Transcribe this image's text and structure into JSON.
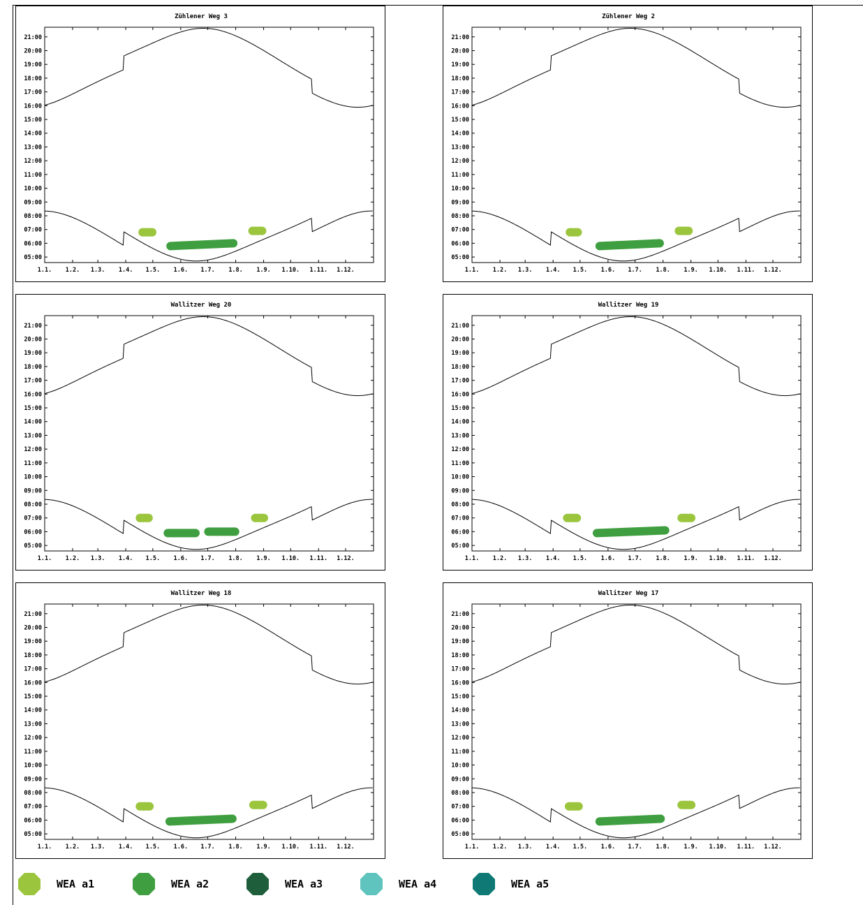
{
  "chart_data": [
    {
      "type": "scatter",
      "title": "Zühlener Weg 3",
      "x_tick_labels": [
        "1.1.",
        "1.2.",
        "1.3.",
        "1.4.",
        "1.5.",
        "1.6.",
        "1.7.",
        "1.8.",
        "1.9.",
        "1.10.",
        "1.11.",
        "1.12."
      ],
      "y_tick_labels": [
        "05:00",
        "06:00",
        "07:00",
        "08:00",
        "09:00",
        "10:00",
        "11:00",
        "12:00",
        "13:00",
        "14:00",
        "15:00",
        "16:00",
        "17:00",
        "18:00",
        "19:00",
        "20:00",
        "21:00"
      ],
      "xlim": [
        0,
        365
      ],
      "ylim": [
        4.6,
        21.7
      ],
      "blobs": [
        {
          "series": "WEA a1",
          "x_start": 104,
          "x_end": 124,
          "y_start": 6.8,
          "y_end": 6.8
        },
        {
          "series": "WEA a2",
          "x_start": 135,
          "x_end": 214,
          "y_start": 5.8,
          "y_end": 6.0
        },
        {
          "series": "WEA a1",
          "x_start": 226,
          "x_end": 246,
          "y_start": 6.9,
          "y_end": 6.9
        }
      ]
    },
    {
      "type": "scatter",
      "title": "Zühlener Weg 2",
      "x_tick_labels": [
        "1.1.",
        "1.2.",
        "1.3.",
        "1.4.",
        "1.5.",
        "1.6.",
        "1.7.",
        "1.8.",
        "1.9.",
        "1.10.",
        "1.11.",
        "1.12."
      ],
      "y_tick_labels": [
        "05:00",
        "06:00",
        "07:00",
        "08:00",
        "09:00",
        "10:00",
        "11:00",
        "12:00",
        "13:00",
        "14:00",
        "15:00",
        "16:00",
        "17:00",
        "18:00",
        "19:00",
        "20:00",
        "21:00"
      ],
      "xlim": [
        0,
        365
      ],
      "ylim": [
        4.6,
        21.7
      ],
      "blobs": [
        {
          "series": "WEA a1",
          "x_start": 104,
          "x_end": 122,
          "y_start": 6.8,
          "y_end": 6.8
        },
        {
          "series": "WEA a2",
          "x_start": 137,
          "x_end": 213,
          "y_start": 5.8,
          "y_end": 6.0
        },
        {
          "series": "WEA a1",
          "x_start": 225,
          "x_end": 245,
          "y_start": 6.9,
          "y_end": 6.9
        }
      ]
    },
    {
      "type": "scatter",
      "title": "Wallitzer Weg 20",
      "x_tick_labels": [
        "1.1.",
        "1.2.",
        "1.3.",
        "1.4.",
        "1.5.",
        "1.6.",
        "1.7.",
        "1.8.",
        "1.9.",
        "1.10.",
        "1.11.",
        "1.12."
      ],
      "y_tick_labels": [
        "05:00",
        "06:00",
        "07:00",
        "08:00",
        "09:00",
        "10:00",
        "11:00",
        "12:00",
        "13:00",
        "14:00",
        "15:00",
        "16:00",
        "17:00",
        "18:00",
        "19:00",
        "20:00",
        "21:00"
      ],
      "xlim": [
        0,
        365
      ],
      "ylim": [
        4.6,
        21.7
      ],
      "blobs": [
        {
          "series": "WEA a1",
          "x_start": 101,
          "x_end": 120,
          "y_start": 7.0,
          "y_end": 7.0
        },
        {
          "series": "WEA a2",
          "x_start": 132,
          "x_end": 172,
          "y_start": 5.9,
          "y_end": 5.9
        },
        {
          "series": "WEA a2",
          "x_start": 177,
          "x_end": 216,
          "y_start": 6.0,
          "y_end": 6.0
        },
        {
          "series": "WEA a1",
          "x_start": 229,
          "x_end": 248,
          "y_start": 7.0,
          "y_end": 7.0
        }
      ]
    },
    {
      "type": "scatter",
      "title": "Wallitzer Weg 19",
      "x_tick_labels": [
        "1.1.",
        "1.2.",
        "1.3.",
        "1.4.",
        "1.5.",
        "1.6.",
        "1.7.",
        "1.8.",
        "1.9.",
        "1.10.",
        "1.11.",
        "1.12."
      ],
      "y_tick_labels": [
        "05:00",
        "06:00",
        "07:00",
        "08:00",
        "09:00",
        "10:00",
        "11:00",
        "12:00",
        "13:00",
        "14:00",
        "15:00",
        "16:00",
        "17:00",
        "18:00",
        "19:00",
        "20:00",
        "21:00"
      ],
      "xlim": [
        0,
        365
      ],
      "ylim": [
        4.6,
        21.7
      ],
      "blobs": [
        {
          "series": "WEA a1",
          "x_start": 101,
          "x_end": 121,
          "y_start": 7.0,
          "y_end": 7.0
        },
        {
          "series": "WEA a2",
          "x_start": 134,
          "x_end": 219,
          "y_start": 5.9,
          "y_end": 6.1
        },
        {
          "series": "WEA a1",
          "x_start": 228,
          "x_end": 248,
          "y_start": 7.0,
          "y_end": 7.0
        }
      ]
    },
    {
      "type": "scatter",
      "title": "Wallitzer Weg 18",
      "x_tick_labels": [
        "1.1.",
        "1.2.",
        "1.3.",
        "1.4.",
        "1.5.",
        "1.6.",
        "1.7.",
        "1.8.",
        "1.9.",
        "1.10.",
        "1.11.",
        "1.12."
      ],
      "y_tick_labels": [
        "05:00",
        "06:00",
        "07:00",
        "08:00",
        "09:00",
        "10:00",
        "11:00",
        "12:00",
        "13:00",
        "14:00",
        "15:00",
        "16:00",
        "17:00",
        "18:00",
        "19:00",
        "20:00",
        "21:00"
      ],
      "xlim": [
        0,
        365
      ],
      "ylim": [
        4.6,
        21.7
      ],
      "blobs": [
        {
          "series": "WEA a1",
          "x_start": 101,
          "x_end": 121,
          "y_start": 7.0,
          "y_end": 7.0
        },
        {
          "series": "WEA a2",
          "x_start": 134,
          "x_end": 213,
          "y_start": 5.9,
          "y_end": 6.1
        },
        {
          "series": "WEA a1",
          "x_start": 227,
          "x_end": 247,
          "y_start": 7.1,
          "y_end": 7.1
        }
      ]
    },
    {
      "type": "scatter",
      "title": "Wallitzer Weg 17",
      "x_tick_labels": [
        "1.1.",
        "1.2.",
        "1.3.",
        "1.4.",
        "1.5.",
        "1.6.",
        "1.7.",
        "1.8.",
        "1.9.",
        "1.10.",
        "1.11.",
        "1.12."
      ],
      "y_tick_labels": [
        "05:00",
        "06:00",
        "07:00",
        "08:00",
        "09:00",
        "10:00",
        "11:00",
        "12:00",
        "13:00",
        "14:00",
        "15:00",
        "16:00",
        "17:00",
        "18:00",
        "19:00",
        "20:00",
        "21:00"
      ],
      "xlim": [
        0,
        365
      ],
      "ylim": [
        4.6,
        21.7
      ],
      "blobs": [
        {
          "series": "WEA a1",
          "x_start": 103,
          "x_end": 123,
          "y_start": 7.0,
          "y_end": 7.0
        },
        {
          "series": "WEA a2",
          "x_start": 137,
          "x_end": 214,
          "y_start": 5.9,
          "y_end": 6.1
        },
        {
          "series": "WEA a1",
          "x_start": 228,
          "x_end": 248,
          "y_start": 7.1,
          "y_end": 7.1
        }
      ]
    }
  ],
  "legend": [
    {
      "label": "WEA a1",
      "color": "#9bc53d",
      "icon": "octagon-marker-icon"
    },
    {
      "label": "WEA a2",
      "color": "#3f9e3f",
      "icon": "octagon-marker-icon"
    },
    {
      "label": "WEA a3",
      "color": "#1e5e3b",
      "icon": "octagon-marker-icon"
    },
    {
      "label": "WEA a4",
      "color": "#5fc3be",
      "icon": "octagon-marker-icon"
    },
    {
      "label": "WEA a5",
      "color": "#0f7a75",
      "icon": "octagon-marker-icon"
    }
  ]
}
